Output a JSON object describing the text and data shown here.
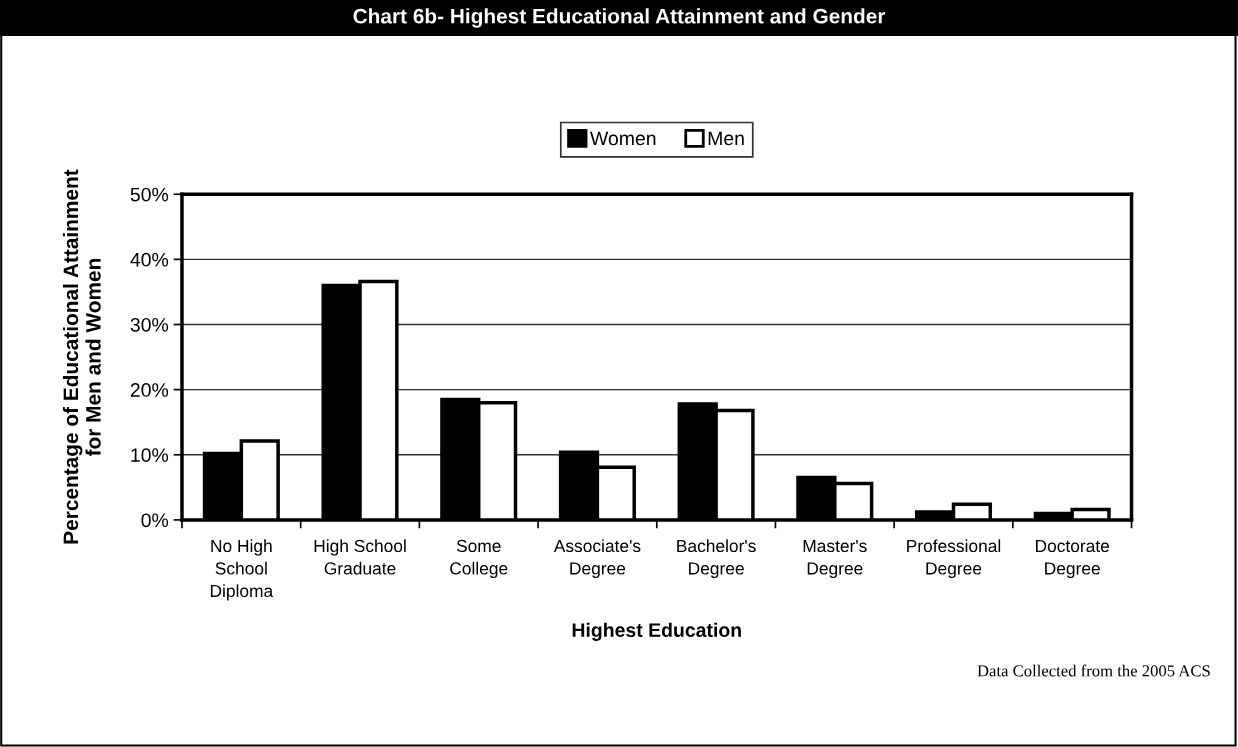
{
  "chart_data": {
    "type": "bar",
    "title": "Chart 6b- Highest Educational Attainment and Gender",
    "xlabel": "Highest Education",
    "ylabel": "Percentage of Educational Attainment\nfor Men and Women",
    "categories": [
      "No High\nSchool\nDiploma",
      "High School\nGraduate",
      "Some\nCollege",
      "Associate's\nDegree",
      "Bachelor's\nDegree",
      "Master's\nDegree",
      "Professional\nDegree",
      "Doctorate\nDegree"
    ],
    "series": [
      {
        "name": "Women",
        "color": "#000000",
        "values": [
          10.2,
          36.0,
          18.5,
          10.4,
          17.8,
          6.5,
          1.2,
          1.0
        ]
      },
      {
        "name": "Men",
        "color": "#ffffff",
        "values": [
          12.1,
          36.6,
          18.0,
          8.1,
          16.8,
          5.6,
          2.4,
          1.6
        ]
      }
    ],
    "ylim": [
      0,
      50
    ],
    "yticks": [
      {
        "value": 0,
        "label": "0%"
      },
      {
        "value": 10,
        "label": "10%"
      },
      {
        "value": 20,
        "label": "20%"
      },
      {
        "value": 30,
        "label": "30%"
      },
      {
        "value": 40,
        "label": "40%"
      },
      {
        "value": 50,
        "label": "50%"
      }
    ],
    "grid": "y",
    "legend": "top",
    "annotations": [
      "Data Collected from the 2005 ACS"
    ]
  }
}
